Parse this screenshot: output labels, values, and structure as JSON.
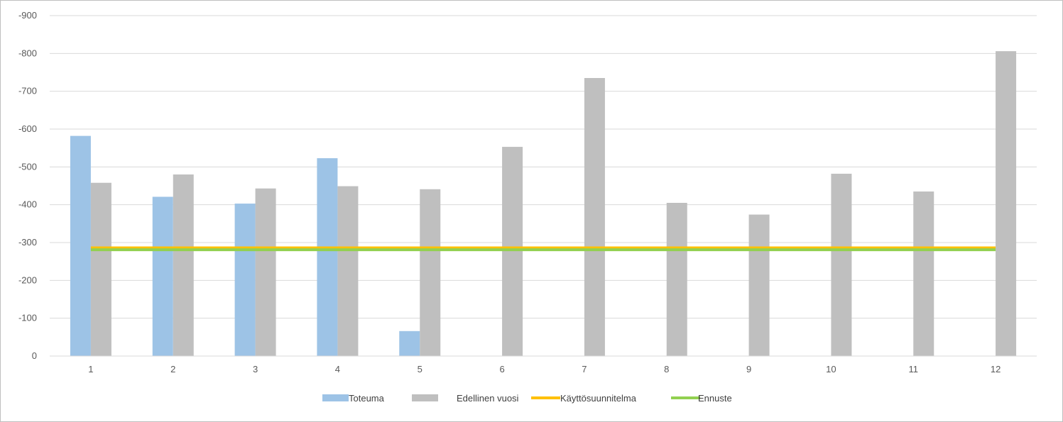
{
  "chart_data": {
    "type": "bar",
    "categories": [
      "1",
      "2",
      "3",
      "4",
      "5",
      "6",
      "7",
      "8",
      "9",
      "10",
      "11",
      "12"
    ],
    "series": [
      {
        "name": "Toteuma",
        "type": "bar",
        "color": "#9dc3e6",
        "values": [
          -582,
          -421,
          -403,
          -523,
          -66,
          null,
          null,
          null,
          null,
          null,
          null,
          null
        ]
      },
      {
        "name": "Edellinen vuosi",
        "type": "bar",
        "color": "#bfbfbf",
        "values": [
          -458,
          -480,
          -443,
          -449,
          -441,
          -553,
          -735,
          -405,
          -374,
          -482,
          -435,
          -806
        ]
      },
      {
        "name": "Käyttösuunnitelma",
        "type": "line",
        "color": "#ffc000",
        "values": [
          -286,
          -286,
          -286,
          -286,
          -286,
          -286,
          -286,
          -286,
          -286,
          -286,
          -286,
          -286
        ]
      },
      {
        "name": "Ennuste",
        "type": "line",
        "color": "#92d050",
        "values": [
          -281,
          -281,
          -281,
          -281,
          -281,
          -281,
          -281,
          -281,
          -281,
          -281,
          -281,
          -281
        ]
      }
    ],
    "y_ticks": [
      "0",
      "-100",
      "-200",
      "-300",
      "-400",
      "-500",
      "-600",
      "-700",
      "-800",
      "-900"
    ],
    "ylim": [
      0,
      -900
    ],
    "y_reversed": true,
    "grid": true,
    "legend_position": "bottom"
  }
}
